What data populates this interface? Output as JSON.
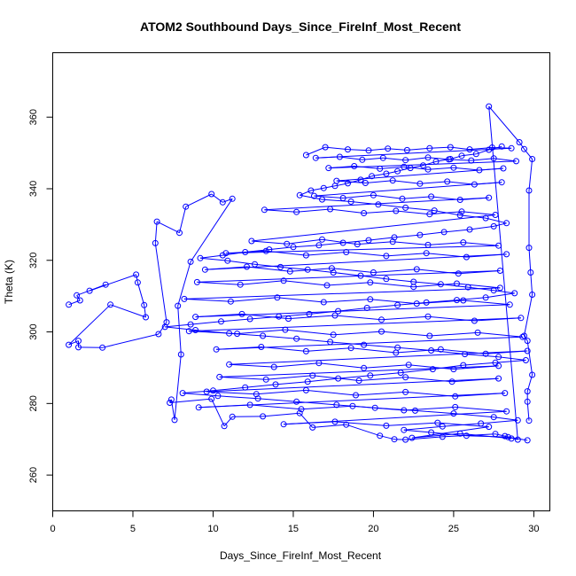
{
  "chart_data": {
    "type": "scatter",
    "title": "ATOM2 Southbound Days_Since_FireInf_Most_Recent",
    "xlabel": "Days_Since_FireInf_Most_Recent",
    "ylabel": "Theta (K)",
    "xlim": [
      0,
      31
    ],
    "ylim": [
      250,
      378
    ],
    "x_ticks": [
      0,
      5,
      10,
      15,
      20,
      25,
      30
    ],
    "y_ticks": [
      260,
      280,
      300,
      320,
      340,
      360
    ],
    "grid": false,
    "legend": "none",
    "marker": "open-circle",
    "connected": true,
    "color": "#0000ff",
    "series": [
      {
        "values": [
          [
            28.0,
            351.8
          ],
          [
            27.2,
            350.9
          ],
          [
            26.4,
            349.7
          ],
          [
            25.5,
            349.2
          ],
          [
            24.8,
            348.3
          ],
          [
            23.9,
            347.6
          ],
          [
            23.1,
            346.5
          ],
          [
            22.3,
            345.8
          ],
          [
            21.5,
            344.9
          ],
          [
            20.8,
            344.2
          ],
          [
            19.9,
            343.5
          ],
          [
            19.2,
            342.5
          ],
          [
            18.4,
            341.5
          ],
          [
            17.6,
            340.8
          ],
          [
            16.9,
            340.2
          ],
          [
            16.1,
            339.5
          ],
          [
            15.4,
            338.2
          ],
          [
            16.8,
            337.0
          ],
          [
            18.6,
            336.4
          ],
          [
            20.3,
            335.6
          ],
          [
            22.0,
            334.7
          ],
          [
            23.8,
            333.9
          ],
          [
            25.4,
            332.6
          ],
          [
            27.0,
            331.8
          ],
          [
            28.3,
            330.4
          ],
          [
            27.5,
            329.5
          ],
          [
            26.0,
            328.6
          ],
          [
            24.4,
            327.9
          ],
          [
            22.9,
            327.1
          ],
          [
            21.3,
            326.4
          ],
          [
            19.7,
            325.6
          ],
          [
            18.1,
            324.9
          ],
          [
            16.6,
            324.2
          ],
          [
            15.0,
            323.7
          ],
          [
            13.5,
            323.0
          ],
          [
            12.0,
            322.3
          ],
          [
            10.6,
            321.4
          ],
          [
            9.2,
            320.6
          ],
          [
            10.9,
            319.9
          ],
          [
            12.6,
            318.9
          ],
          [
            14.2,
            318.1
          ],
          [
            15.9,
            317.4
          ],
          [
            17.5,
            316.6
          ],
          [
            19.2,
            315.7
          ],
          [
            20.8,
            314.8
          ],
          [
            22.5,
            314.0
          ],
          [
            24.2,
            313.3
          ],
          [
            25.9,
            312.5
          ],
          [
            27.5,
            311.6
          ],
          [
            28.8,
            310.8
          ],
          [
            27.0,
            309.6
          ],
          [
            25.2,
            308.9
          ],
          [
            23.3,
            308.2
          ],
          [
            21.5,
            307.5
          ],
          [
            19.6,
            306.7
          ],
          [
            17.8,
            305.8
          ],
          [
            16.0,
            305.0
          ],
          [
            14.1,
            304.3
          ],
          [
            12.3,
            303.6
          ],
          [
            10.5,
            302.9
          ],
          [
            8.6,
            302.1
          ],
          [
            7.0,
            301.4
          ],
          [
            8.9,
            300.5
          ],
          [
            11.0,
            299.6
          ],
          [
            13.1,
            298.9
          ],
          [
            15.2,
            298.1
          ],
          [
            17.3,
            297.2
          ],
          [
            19.4,
            296.4
          ],
          [
            21.5,
            295.6
          ],
          [
            23.6,
            294.8
          ],
          [
            25.7,
            293.8
          ],
          [
            27.8,
            293.0
          ],
          [
            29.5,
            292.1
          ],
          [
            27.6,
            291.4
          ],
          [
            25.6,
            290.7
          ],
          [
            23.7,
            289.6
          ],
          [
            21.7,
            288.6
          ],
          [
            19.8,
            287.8
          ],
          [
            17.8,
            287.0
          ],
          [
            15.9,
            286.1
          ],
          [
            13.9,
            285.3
          ],
          [
            12.0,
            284.5
          ],
          [
            10.0,
            283.6
          ],
          [
            8.1,
            282.9
          ],
          [
            10.3,
            282.1
          ],
          [
            12.8,
            281.4
          ],
          [
            15.2,
            280.5
          ],
          [
            17.7,
            279.6
          ],
          [
            20.1,
            278.8
          ],
          [
            22.6,
            278.0
          ],
          [
            25.0,
            277.2
          ],
          [
            27.5,
            276.2
          ],
          [
            29.0,
            275.3
          ],
          [
            26.7,
            274.4
          ],
          [
            24.3,
            273.6
          ],
          [
            21.9,
            272.6
          ],
          [
            23.6,
            271.9
          ],
          [
            25.8,
            271.0
          ],
          [
            28.4,
            270.6
          ],
          [
            29.6,
            269.7
          ]
        ]
      },
      {
        "values": [
          [
            1.0,
            307.6
          ],
          [
            1.7,
            308.8
          ],
          [
            1.5,
            310.2
          ],
          [
            3.3,
            313.2
          ],
          [
            2.3,
            311.5
          ],
          [
            5.2,
            316.0
          ],
          [
            5.3,
            313.8
          ],
          [
            5.7,
            307.5
          ],
          [
            5.8,
            304.1
          ],
          [
            3.6,
            307.6
          ],
          [
            1.0,
            296.4
          ],
          [
            1.6,
            297.5
          ],
          [
            1.6,
            295.7
          ],
          [
            3.1,
            295.6
          ],
          [
            6.6,
            299.4
          ],
          [
            7.1,
            302.7
          ],
          [
            6.4,
            324.8
          ],
          [
            6.5,
            330.8
          ],
          [
            7.9,
            327.7
          ],
          [
            8.3,
            335.0
          ],
          [
            9.9,
            338.5
          ],
          [
            10.6,
            336.2
          ],
          [
            11.2,
            337.2
          ],
          [
            8.6,
            319.6
          ],
          [
            7.8,
            307.3
          ],
          [
            8.0,
            293.7
          ],
          [
            7.6,
            275.4
          ],
          [
            7.4,
            281.1
          ],
          [
            7.3,
            280.2
          ],
          [
            9.9,
            281.3
          ],
          [
            10.7,
            273.7
          ],
          [
            11.2,
            276.3
          ],
          [
            13.1,
            276.4
          ],
          [
            15.4,
            277.3
          ],
          [
            16.2,
            273.3
          ],
          [
            18.3,
            274.1
          ],
          [
            20.4,
            271.0
          ],
          [
            21.3,
            270.0
          ],
          [
            22.0,
            269.9
          ],
          [
            24.3,
            270.7
          ],
          [
            27.6,
            271.5
          ],
          [
            28.2,
            270.9
          ],
          [
            29.0,
            269.9
          ],
          [
            27.2,
            363.0
          ],
          [
            29.1,
            353.0
          ],
          [
            29.4,
            351.1
          ],
          [
            29.9,
            348.3
          ],
          [
            29.7,
            339.5
          ],
          [
            29.7,
            323.5
          ],
          [
            29.8,
            316.6
          ],
          [
            29.9,
            310.4
          ],
          [
            29.4,
            298.9
          ],
          [
            29.6,
            297.5
          ],
          [
            29.9,
            288.0
          ],
          [
            29.6,
            283.4
          ],
          [
            29.6,
            280.5
          ],
          [
            29.7,
            275.2
          ]
        ]
      },
      {
        "values": [
          [
            15.8,
            349.4
          ],
          [
            17.0,
            351.6
          ],
          [
            18.4,
            351.0
          ],
          [
            19.7,
            350.7
          ],
          [
            20.9,
            351.2
          ],
          [
            22.1,
            350.8
          ],
          [
            23.5,
            351.3
          ],
          [
            24.8,
            351.6
          ],
          [
            26.0,
            351.0
          ],
          [
            27.4,
            351.5
          ],
          [
            28.6,
            351.3
          ],
          [
            16.4,
            348.6
          ],
          [
            17.9,
            348.9
          ],
          [
            19.3,
            348.1
          ],
          [
            20.6,
            348.6
          ],
          [
            22.0,
            348.0
          ],
          [
            23.4,
            348.7
          ],
          [
            24.7,
            348.2
          ],
          [
            26.1,
            347.9
          ],
          [
            27.5,
            348.5
          ],
          [
            28.9,
            347.7
          ],
          [
            17.2,
            345.8
          ],
          [
            18.8,
            346.3
          ],
          [
            20.4,
            345.6
          ],
          [
            21.9,
            346.1
          ],
          [
            23.4,
            345.4
          ],
          [
            25.0,
            345.9
          ],
          [
            26.6,
            345.2
          ],
          [
            28.1,
            345.7
          ],
          [
            17.7,
            342.2
          ],
          [
            19.5,
            341.6
          ],
          [
            21.2,
            342.3
          ],
          [
            22.9,
            341.4
          ],
          [
            24.6,
            342.0
          ],
          [
            26.3,
            341.2
          ],
          [
            28.0,
            341.8
          ],
          [
            16.3,
            338.0
          ],
          [
            18.1,
            337.4
          ],
          [
            20.0,
            338.2
          ],
          [
            21.8,
            337.2
          ],
          [
            23.6,
            337.8
          ],
          [
            25.4,
            336.9
          ],
          [
            27.2,
            337.5
          ],
          [
            13.2,
            334.1
          ],
          [
            15.2,
            333.5
          ],
          [
            17.3,
            334.3
          ],
          [
            19.4,
            333.2
          ],
          [
            21.4,
            333.8
          ],
          [
            23.5,
            332.9
          ],
          [
            25.5,
            333.6
          ],
          [
            27.6,
            332.7
          ],
          [
            12.4,
            325.4
          ],
          [
            14.6,
            324.6
          ],
          [
            16.8,
            325.8
          ],
          [
            19.0,
            324.5
          ],
          [
            21.2,
            325.2
          ],
          [
            23.4,
            324.3
          ],
          [
            25.6,
            325.0
          ],
          [
            27.8,
            324.1
          ],
          [
            10.8,
            322.0
          ],
          [
            13.3,
            322.6
          ],
          [
            15.8,
            321.4
          ],
          [
            18.3,
            322.3
          ],
          [
            20.8,
            321.2
          ],
          [
            23.3,
            322.0
          ],
          [
            25.8,
            320.9
          ],
          [
            28.3,
            321.7
          ],
          [
            9.5,
            317.4
          ],
          [
            12.1,
            318.2
          ],
          [
            14.8,
            316.9
          ],
          [
            17.4,
            317.8
          ],
          [
            20.0,
            316.6
          ],
          [
            22.7,
            317.5
          ],
          [
            25.3,
            316.3
          ],
          [
            27.9,
            317.1
          ],
          [
            9.0,
            313.9
          ],
          [
            11.7,
            313.2
          ],
          [
            14.4,
            314.3
          ],
          [
            17.1,
            313.0
          ],
          [
            19.8,
            313.8
          ],
          [
            22.5,
            312.6
          ],
          [
            25.2,
            313.5
          ],
          [
            27.9,
            312.3
          ],
          [
            8.2,
            309.2
          ],
          [
            11.1,
            308.5
          ],
          [
            14.0,
            309.6
          ],
          [
            16.9,
            308.3
          ],
          [
            19.8,
            309.1
          ],
          [
            22.7,
            307.9
          ],
          [
            25.6,
            308.8
          ],
          [
            28.5,
            307.6
          ],
          [
            8.9,
            304.2
          ],
          [
            11.8,
            305.0
          ],
          [
            14.7,
            303.7
          ],
          [
            17.6,
            304.6
          ],
          [
            20.5,
            303.4
          ],
          [
            23.4,
            304.3
          ],
          [
            26.3,
            303.1
          ],
          [
            29.2,
            303.9
          ],
          [
            8.5,
            300.2
          ],
          [
            11.5,
            299.5
          ],
          [
            14.5,
            300.6
          ],
          [
            17.5,
            299.2
          ],
          [
            20.5,
            300.1
          ],
          [
            23.5,
            298.9
          ],
          [
            26.5,
            299.8
          ],
          [
            29.3,
            298.6
          ],
          [
            10.2,
            295.1
          ],
          [
            13.0,
            295.8
          ],
          [
            15.8,
            294.6
          ],
          [
            18.6,
            295.5
          ],
          [
            21.4,
            294.2
          ],
          [
            24.2,
            295.1
          ],
          [
            27.0,
            293.9
          ],
          [
            29.6,
            294.7
          ],
          [
            11.0,
            290.9
          ],
          [
            13.8,
            290.2
          ],
          [
            16.6,
            291.3
          ],
          [
            19.4,
            289.9
          ],
          [
            22.2,
            290.8
          ],
          [
            25.0,
            289.6
          ],
          [
            27.8,
            290.5
          ],
          [
            10.4,
            287.4
          ],
          [
            13.3,
            286.7
          ],
          [
            16.2,
            287.8
          ],
          [
            19.1,
            286.4
          ],
          [
            22.0,
            287.3
          ],
          [
            24.9,
            286.1
          ],
          [
            27.8,
            287.0
          ],
          [
            9.6,
            283.3
          ],
          [
            12.7,
            282.6
          ],
          [
            15.8,
            283.7
          ],
          [
            18.9,
            282.3
          ],
          [
            22.0,
            283.2
          ],
          [
            25.1,
            282.0
          ],
          [
            28.2,
            282.9
          ],
          [
            9.1,
            278.9
          ],
          [
            12.3,
            279.6
          ],
          [
            15.5,
            278.4
          ],
          [
            18.7,
            279.3
          ],
          [
            21.9,
            278.1
          ],
          [
            25.1,
            279.0
          ],
          [
            28.3,
            277.8
          ],
          [
            14.4,
            274.2
          ],
          [
            17.6,
            274.9
          ],
          [
            20.8,
            273.8
          ],
          [
            24.0,
            274.6
          ],
          [
            27.2,
            273.5
          ],
          [
            22.4,
            270.4
          ],
          [
            25.4,
            271.6
          ],
          [
            28.6,
            270.2
          ]
        ]
      }
    ]
  }
}
